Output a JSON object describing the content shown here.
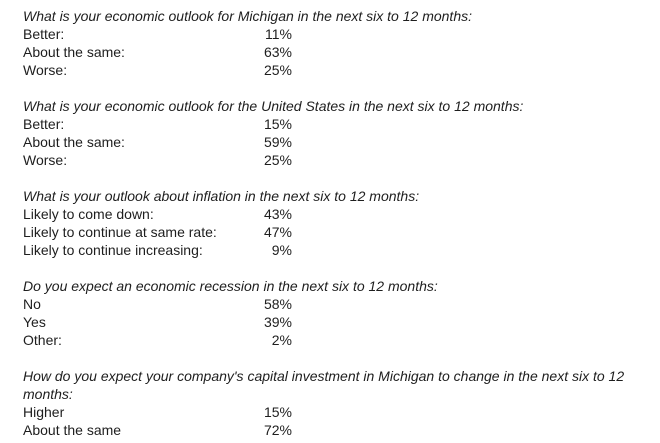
{
  "page": {
    "background_color": "#ffffff",
    "text_color": "#1e1e1e"
  },
  "survey": {
    "questions": [
      {
        "question": "What is your economic outlook for Michigan in the next six to 12 months:",
        "answers": [
          {
            "label": "Better:",
            "value": "11%"
          },
          {
            "label": "About the same:",
            "value": "63%"
          },
          {
            "label": "Worse:",
            "value": "25%"
          }
        ]
      },
      {
        "question": "What is your economic outlook for the United States in the next six to 12 months:",
        "answers": [
          {
            "label": "Better:",
            "value": "15%"
          },
          {
            "label": "About the same:",
            "value": "59%"
          },
          {
            "label": "Worse:",
            "value": "25%"
          }
        ]
      },
      {
        "question": "What is your outlook about inflation in the next six to 12 months:",
        "answers": [
          {
            "label": "Likely to come down:",
            "value": "43%"
          },
          {
            "label": "Likely to continue at same rate:",
            "value": "47%"
          },
          {
            "label": "Likely to continue increasing:",
            "value": "9%"
          }
        ]
      },
      {
        "question": "Do you expect an economic recession in the next six to 12 months:",
        "answers": [
          {
            "label": "No",
            "value": "58%"
          },
          {
            "label": "Yes",
            "value": "39%"
          },
          {
            "label": "Other:",
            "value": "2%"
          }
        ]
      },
      {
        "question": "How do you expect your company's capital investment in Michigan to change in the next six to 12 months:",
        "answers": [
          {
            "label": "Higher",
            "value": "15%"
          },
          {
            "label": "About the same",
            "value": "72%"
          }
        ]
      }
    ]
  }
}
